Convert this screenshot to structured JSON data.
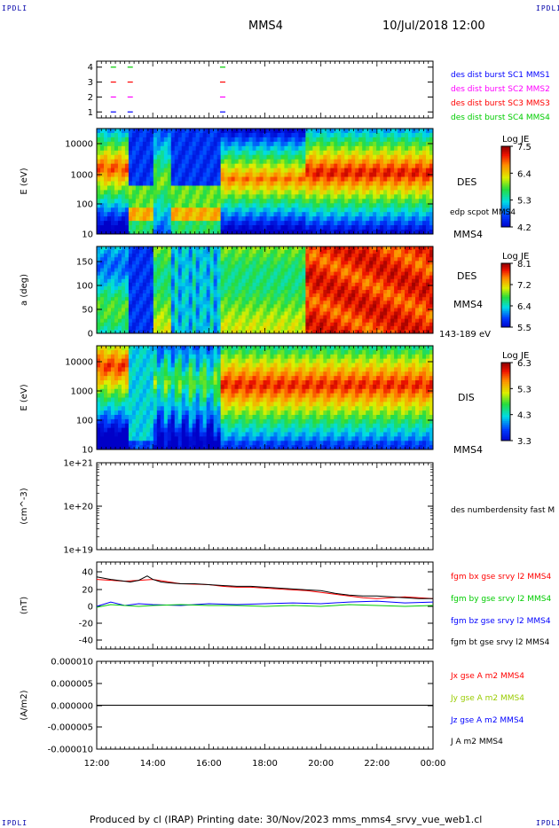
{
  "header": {
    "spacecraft": "MMS4",
    "datetime": "10/Jul/2018 12:00",
    "corner_left_top": "IPDLI",
    "corner_right_top": "IPDLI",
    "corner_left_bottom": "IPDLI",
    "corner_right_bottom": "IPDLI"
  },
  "footer": {
    "text": "Produced by cl (IRAP)   Printing date: 30/Nov/2023   mms_mms4_srvy_vue_web1.cl"
  },
  "chart_data": [
    {
      "id": "availability",
      "type": "scatter",
      "yticks": [
        "1",
        "2",
        "3",
        "4"
      ],
      "ylim": [
        0.6,
        4.4
      ],
      "legend": [
        {
          "label": "des dist burst SC1 MMS1",
          "color": "#0000ff"
        },
        {
          "label": "des dist burst SC2 MMS2",
          "color": "#ff00ff"
        },
        {
          "label": "des dist burst SC3 MMS3",
          "color": "#ff0000"
        },
        {
          "label": "des dist burst SC4 MMS4",
          "color": "#00cc00"
        }
      ],
      "marks": [
        {
          "hour": 12.5,
          "level": 1,
          "color": "#0000ff"
        },
        {
          "hour": 13.1,
          "level": 1,
          "color": "#0000ff"
        },
        {
          "hour": 16.4,
          "level": 1,
          "color": "#0000ff"
        },
        {
          "hour": 12.5,
          "level": 2,
          "color": "#ff00ff"
        },
        {
          "hour": 13.1,
          "level": 2,
          "color": "#ff00ff"
        },
        {
          "hour": 16.4,
          "level": 2,
          "color": "#ff00ff"
        },
        {
          "hour": 12.5,
          "level": 3,
          "color": "#ff0000"
        },
        {
          "hour": 13.1,
          "level": 3,
          "color": "#ff0000"
        },
        {
          "hour": 16.4,
          "level": 3,
          "color": "#ff0000"
        },
        {
          "hour": 12.5,
          "level": 4,
          "color": "#00cc00"
        },
        {
          "hour": 13.1,
          "level": 4,
          "color": "#00cc00"
        },
        {
          "hour": 16.4,
          "level": 4,
          "color": "#00cc00"
        }
      ]
    },
    {
      "id": "des-energy",
      "type": "heatmap",
      "ylabel": "E (eV)",
      "scale": "log",
      "ylim": [
        10,
        30000
      ],
      "yticks": [
        "10000",
        "1000",
        "100",
        "10"
      ],
      "right_labels": [
        "DES",
        "edp scpot MMS4",
        "MMS4"
      ],
      "colorbar": {
        "title": "Log JE",
        "ticks": [
          "7.5",
          "6.4",
          "5.3",
          "4.2"
        ],
        "range": [
          4.2,
          7.5
        ]
      }
    },
    {
      "id": "des-pitch",
      "type": "heatmap",
      "ylabel": "a (deg)",
      "ylim": [
        0,
        180
      ],
      "yticks": [
        "150",
        "100",
        "50",
        "0"
      ],
      "right_labels": [
        "DES",
        "MMS4",
        "143-189 eV"
      ],
      "colorbar": {
        "title": "Log JE",
        "ticks": [
          "8.1",
          "7.2",
          "6.4",
          "5.5"
        ],
        "range": [
          5.5,
          8.1
        ]
      }
    },
    {
      "id": "dis-energy",
      "type": "heatmap",
      "ylabel": "E (eV)",
      "scale": "log",
      "ylim": [
        10,
        30000
      ],
      "yticks": [
        "10000",
        "1000",
        "100",
        "10"
      ],
      "right_labels": [
        "DIS",
        "MMS4"
      ],
      "colorbar": {
        "title": "Log JE",
        "ticks": [
          "6.3",
          "5.3",
          "4.3",
          "3.3"
        ],
        "range": [
          3.3,
          6.3
        ]
      }
    },
    {
      "id": "density",
      "type": "line",
      "ylabel": "(cm^-3)",
      "scale": "log",
      "ylim": [
        1e+19,
        1e+21
      ],
      "yticks": [
        "1e+21",
        "1e+20",
        "1e+19"
      ],
      "legend": [
        {
          "label": "des numberdensity fast M",
          "color": "#000000"
        }
      ],
      "series": []
    },
    {
      "id": "magnetic-field",
      "type": "line",
      "ylabel": "(nT)",
      "ylim": [
        -50,
        50
      ],
      "yticks": [
        "40",
        "20",
        "0",
        "-20",
        "-40"
      ],
      "legend": [
        {
          "label": "fgm bx gse srvy l2 MMS4",
          "color": "#ff0000"
        },
        {
          "label": "fgm by gse srvy l2 MMS4",
          "color": "#00cc00"
        },
        {
          "label": "fgm bz gse srvy l2 MMS4",
          "color": "#0000ff"
        },
        {
          "label": "fgm bt gse srvy l2 MMS4",
          "color": "#000000"
        }
      ],
      "series": [
        {
          "color": "#000000",
          "hours": [
            12,
            12.5,
            13,
            13.2,
            13.5,
            13.8,
            14,
            14.3,
            14.6,
            15,
            15.5,
            16,
            16.5,
            17,
            17.5,
            18,
            18.5,
            19,
            19.5,
            20,
            20.5,
            21,
            21.5,
            22,
            22.5,
            23,
            23.5,
            24
          ],
          "values": [
            33,
            30,
            28,
            27,
            29,
            34,
            30,
            27,
            26,
            25,
            25,
            24,
            23,
            22,
            22,
            21,
            20,
            19,
            18,
            17,
            14,
            12,
            11,
            11,
            10,
            9,
            8,
            8
          ]
        },
        {
          "color": "#ff0000",
          "hours": [
            12,
            13,
            14,
            15,
            16,
            16.5,
            17,
            17.5,
            18,
            18.5,
            19,
            19.5,
            20,
            20.5,
            21,
            21.5,
            22,
            22.5,
            23,
            23.5,
            24
          ],
          "values": [
            30,
            28,
            30,
            25,
            24,
            22,
            21,
            21,
            20,
            19,
            18,
            17,
            15,
            13,
            11,
            9,
            8,
            9,
            10,
            9,
            8
          ]
        },
        {
          "color": "#00cc00",
          "hours": [
            12,
            12.5,
            13,
            13.5,
            14,
            15,
            16,
            17,
            18,
            19,
            20,
            21,
            22,
            23,
            24
          ],
          "values": [
            -2,
            1,
            0,
            -1,
            0,
            1,
            0,
            0,
            -1,
            0,
            -1,
            1,
            0,
            -1,
            0
          ]
        },
        {
          "color": "#0000ff",
          "hours": [
            12,
            12.5,
            13,
            13.5,
            14,
            15,
            16,
            17,
            18,
            19,
            20,
            21,
            22,
            23,
            24
          ],
          "values": [
            -1,
            4,
            0,
            2,
            1,
            0,
            2,
            1,
            2,
            3,
            2,
            4,
            5,
            3,
            4
          ]
        }
      ]
    },
    {
      "id": "current-density",
      "type": "line",
      "ylabel": "(A/m2)",
      "ylim": [
        -1e-05,
        1e-05
      ],
      "yticks": [
        "0.000010",
        "0.000005",
        "0.000000",
        "-0.000005",
        "-0.000010"
      ],
      "legend": [
        {
          "label": "Jx gse A m2 MMS4",
          "color": "#ff0000"
        },
        {
          "label": "Jy gse A m2 MMS4",
          "color": "#99cc00"
        },
        {
          "label": "Jz gse A m2 MMS4",
          "color": "#0000ff"
        },
        {
          "label": "J A m2 MMS4",
          "color": "#000000"
        }
      ],
      "series": [
        {
          "color": "#000000",
          "hours": [
            12,
            24
          ],
          "values": [
            0,
            0
          ]
        }
      ]
    }
  ],
  "time_axis": {
    "ticks": [
      "12:00",
      "14:00",
      "16:00",
      "18:00",
      "20:00",
      "22:00",
      "00:00"
    ],
    "range_hours": [
      12,
      24
    ]
  }
}
